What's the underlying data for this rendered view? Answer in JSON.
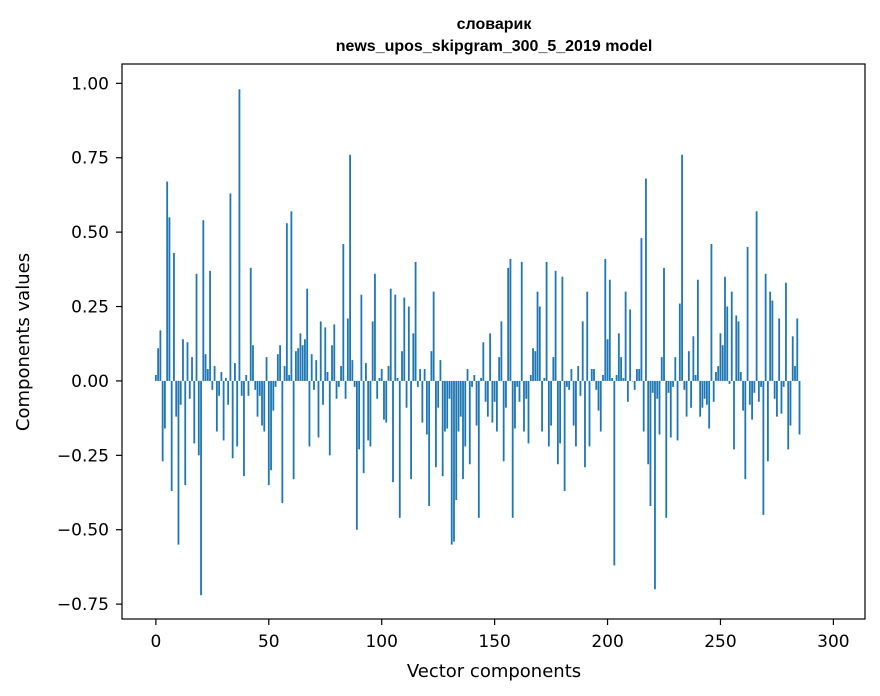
{
  "chart_data": {
    "type": "bar",
    "title_line1": "словарик",
    "title_line2": "news_upos_skipgram_300_5_2019 model",
    "xlabel": "Vector components",
    "ylabel": "Components values",
    "xlim": [
      -15,
      314
    ],
    "ylim": [
      -0.8,
      1.065
    ],
    "xticks": [
      0,
      50,
      100,
      150,
      200,
      250,
      300
    ],
    "xtick_labels": [
      "0",
      "50",
      "100",
      "150",
      "200",
      "250",
      "300"
    ],
    "yticks": [
      -0.75,
      -0.5,
      -0.25,
      0.0,
      0.25,
      0.5,
      0.75,
      1.0
    ],
    "ytick_labels": [
      "−0.75",
      "−0.50",
      "−0.25",
      "0.00",
      "0.25",
      "0.50",
      "0.75",
      "1.00"
    ],
    "grid": false,
    "bar_color": "#1f77b4",
    "values": [
      0.02,
      0.11,
      0.17,
      -0.27,
      -0.16,
      0.67,
      0.55,
      -0.37,
      0.43,
      -0.12,
      -0.55,
      -0.08,
      0.14,
      -0.35,
      0.13,
      -0.06,
      0.08,
      -0.21,
      0.36,
      -0.25,
      -0.72,
      0.54,
      0.09,
      0.04,
      0.37,
      -0.03,
      0.05,
      -0.17,
      -0.05,
      0.03,
      -0.2,
      0.01,
      -0.08,
      0.63,
      -0.26,
      0.06,
      -0.22,
      0.98,
      -0.05,
      -0.32,
      0.02,
      -0.05,
      0.38,
      0.12,
      -0.03,
      -0.12,
      -0.05,
      -0.15,
      -0.17,
      0.08,
      -0.35,
      -0.3,
      -0.1,
      -0.02,
      0.09,
      0.12,
      -0.41,
      0.05,
      0.53,
      0.02,
      0.57,
      -0.33,
      0.1,
      0.11,
      0.16,
      0.12,
      0.14,
      0.31,
      -0.22,
      0.09,
      -0.03,
      0.07,
      -0.19,
      0.2,
      -0.08,
      0.18,
      0.03,
      -0.25,
      0.12,
      0.19,
      -0.06,
      -0.02,
      0.05,
      0.46,
      -0.06,
      0.21,
      0.76,
      0.07,
      -0.02,
      -0.5,
      -0.23,
      0.29,
      -0.31,
      0.06,
      -0.2,
      -0.22,
      0.2,
      0.36,
      -0.06,
      0.01,
      0.04,
      -0.13,
      -0.14,
      0.05,
      0.31,
      -0.34,
      0.29,
      0.01,
      -0.46,
      0.1,
      0.28,
      -0.09,
      0.25,
      -0.33,
      0.16,
      0.4,
      -0.02,
      0.04,
      -0.14,
      0.04,
      -0.18,
      -0.42,
      0.1,
      0.3,
      -0.29,
      -0.09,
      0.07,
      -0.32,
      -0.17,
      -0.16,
      -0.06,
      -0.55,
      -0.54,
      -0.4,
      -0.17,
      -0.12,
      -0.33,
      -0.22,
      0.04,
      -0.28,
      -0.02,
      0.02,
      -0.15,
      -0.46,
      0.01,
      0.13,
      -0.07,
      -0.12,
      0.16,
      -0.14,
      -0.07,
      -0.17,
      0.08,
      0.2,
      -0.27,
      -0.09,
      0.38,
      0.41,
      -0.46,
      -0.16,
      -0.02,
      -0.07,
      0.4,
      -0.17,
      -0.06,
      -0.21,
      0.02,
      0.11,
      0.1,
      0.3,
      0.25,
      -0.17,
      0.01,
      0.4,
      -0.22,
      -0.15,
      0.08,
      0.37,
      -0.28,
      -0.21,
      0.35,
      -0.37,
      -0.02,
      -0.03,
      0.04,
      -0.15,
      -0.22,
      0.05,
      -0.05,
      0.2,
      -0.29,
      0.3,
      -0.22,
      0.04,
      0.04,
      -0.03,
      -0.1,
      -0.17,
      0.02,
      0.41,
      0.14,
      0.34,
      0.01,
      -0.62,
      0.02,
      0.16,
      0.08,
      0.01,
      0.3,
      -0.07,
      0.24,
      0.0,
      -0.03,
      0.04,
      0.04,
      0.48,
      -0.17,
      0.68,
      -0.28,
      -0.42,
      -0.04,
      -0.7,
      -0.06,
      -0.18,
      0.08,
      0.38,
      -0.46,
      -0.04,
      -0.19,
      -0.02,
      0.08,
      -0.2,
      0.26,
      0.76,
      -0.03,
      -0.12,
      0.1,
      -0.09,
      0.15,
      0.02,
      0.34,
      -0.12,
      -0.09,
      -0.06,
      -0.08,
      -0.16,
      0.46,
      -0.07,
      0.03,
      0.05,
      0.16,
      0.12,
      0.35,
      0.25,
      -0.01,
      0.3,
      -0.23,
      0.22,
      0.2,
      0.03,
      -0.1,
      -0.33,
      0.45,
      -0.08,
      -0.13,
      -0.04,
      0.57,
      -0.07,
      -0.02,
      -0.45,
      0.36,
      -0.27,
      0.3,
      0.27,
      -0.06,
      -0.12,
      0.21,
      -0.11,
      -0.02,
      0.33,
      -0.23,
      -0.15,
      0.15,
      0.05,
      0.21,
      -0.18
    ]
  }
}
